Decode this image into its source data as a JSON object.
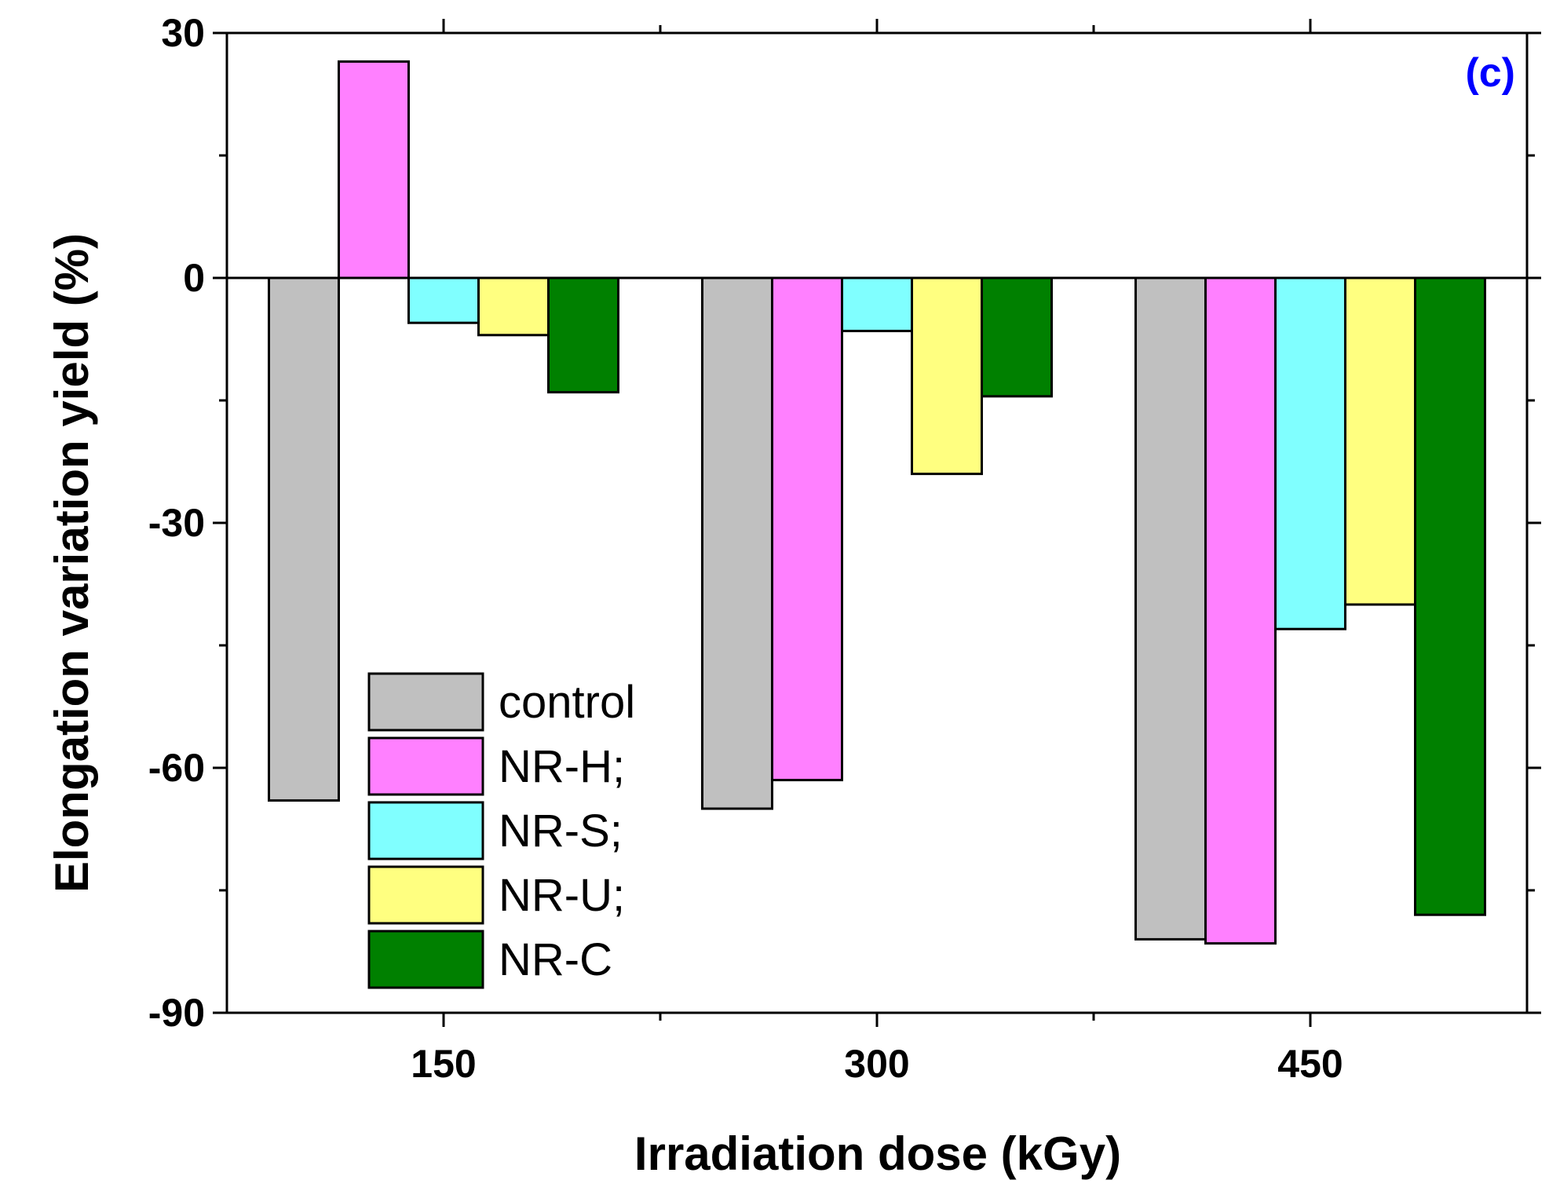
{
  "chart_data": {
    "type": "bar",
    "title": "",
    "panel_label": "(c)",
    "xlabel": "Irradiation dose (kGy)",
    "ylabel": "Elongation variation yield (%)",
    "categories": [
      "150",
      "300",
      "450"
    ],
    "ylim": [
      -90,
      30
    ],
    "yticks": [
      30,
      0,
      -30,
      -60,
      -90
    ],
    "series": [
      {
        "name": "control",
        "color": "#c0c0c0",
        "values": [
          -64,
          -65,
          -81
        ]
      },
      {
        "name": "NR-H;",
        "color": "#ff80ff",
        "values": [
          26.5,
          -61.5,
          -81.5
        ]
      },
      {
        "name": "NR-S;",
        "color": "#80ffff",
        "values": [
          -5.5,
          -6.5,
          -43
        ]
      },
      {
        "name": "NR-U;",
        "color": "#ffff80",
        "values": [
          -7,
          -24,
          -40
        ]
      },
      {
        "name": "NR-C",
        "color": "#008000",
        "values": [
          -14,
          -14.5,
          -78
        ]
      }
    ],
    "legend_position": "bottom-left",
    "colors": {
      "panel_label": "#0000ff",
      "axis": "#000000"
    }
  }
}
